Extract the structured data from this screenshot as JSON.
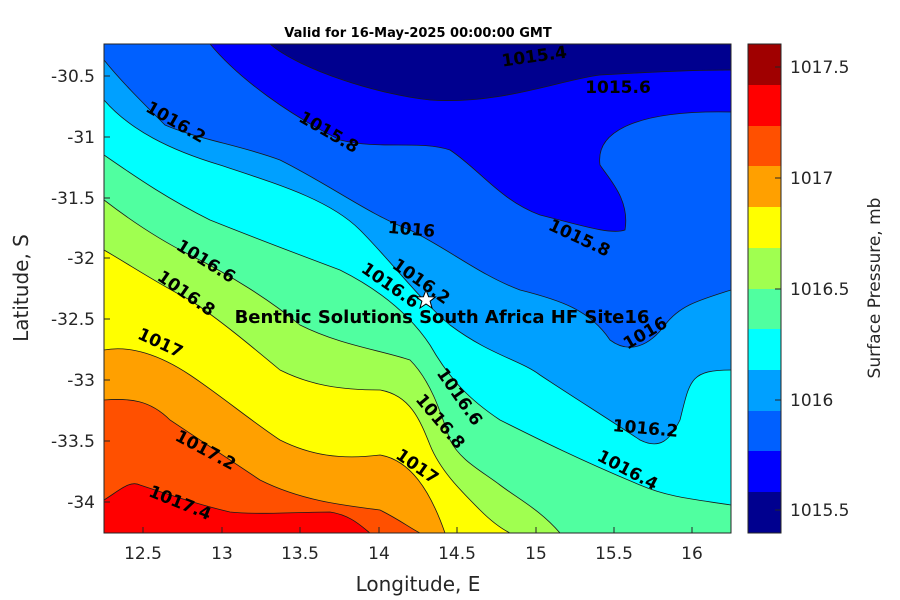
{
  "title": "Valid for 16-May-2025 00:00:00 GMT",
  "colors": {
    "levels": [
      "#00008f",
      "#0000ff",
      "#0060ff",
      "#00a0ff",
      "#00ffff",
      "#50ffa0",
      "#a0ff50",
      "#ffff00",
      "#ffa000",
      "#ff5000",
      "#ff0000",
      "#a00000"
    ],
    "contour_line": "#1a1a1a",
    "star_fill": "#ffffff"
  },
  "chart_data": {
    "type": "contour map",
    "title": "Valid for 16-May-2025 00:00:00 GMT",
    "xlabel": "Longitude, E",
    "ylabel": "Latitude, S",
    "xlim": [
      12.25,
      16.25
    ],
    "ylim": [
      -34.25,
      -30.2
    ],
    "x_ticks": [
      "12.5",
      "13",
      "13.5",
      "14",
      "14.5",
      "15",
      "15.5",
      "16"
    ],
    "y_ticks": [
      "-30.5",
      "-31",
      "-31.5",
      "-32",
      "-32.5",
      "-33",
      "-33.5",
      "-34"
    ],
    "colorbar": {
      "label": "Surface Pressure, mb",
      "range": [
        1015.4,
        1017.6
      ],
      "tick_labels": [
        "1017.5",
        "1017",
        "1016.5",
        "1016",
        "1015.5"
      ]
    },
    "contour_labels": [
      "1015.4",
      "1015.6",
      "1015.8",
      "1015.8",
      "1016",
      "1016.2",
      "1016.2",
      "1016.2",
      "1016.4",
      "1016.6",
      "1016.6",
      "1016.6",
      "1016.8",
      "1016.8",
      "1017",
      "1017",
      "1017.2",
      "1017.4",
      "1016"
    ],
    "site": {
      "name": "Benthic Solutions South Africa HF Site16",
      "longitude": 14.32,
      "latitude": -32.35
    }
  }
}
